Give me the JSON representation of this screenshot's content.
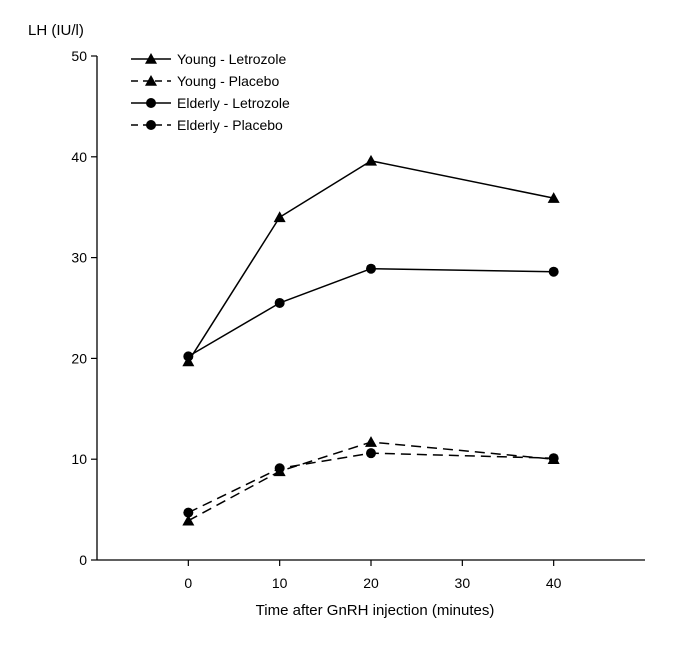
{
  "chart_data": {
    "type": "line",
    "title": "",
    "ylabel": "LH (IU/l)",
    "xlabel": "Time after GnRH injection (minutes)",
    "x_ticks": [
      0,
      10,
      20,
      30,
      40
    ],
    "y_ticks": [
      0,
      10,
      20,
      30,
      40,
      50
    ],
    "x_tick_labels": [
      "0",
      "10",
      "20",
      "30",
      "40"
    ],
    "y_tick_labels": [
      "0",
      "10",
      "20",
      "30",
      "40",
      "50"
    ],
    "xlim": [
      -10,
      50
    ],
    "ylim": [
      0,
      50
    ],
    "grid": false,
    "legend_position": "top-left",
    "series": [
      {
        "name": "Young - Letrozole",
        "line_style": "solid",
        "marker": "triangle",
        "x": [
          0,
          10,
          20,
          40
        ],
        "values": [
          19.7,
          34.0,
          39.6,
          35.9
        ]
      },
      {
        "name": "Young - Placebo",
        "line_style": "dashed",
        "marker": "triangle",
        "x": [
          0,
          10,
          20,
          40
        ],
        "values": [
          3.9,
          8.8,
          11.7,
          10.0
        ]
      },
      {
        "name": "Elderly - Letrozole",
        "line_style": "solid",
        "marker": "circle",
        "x": [
          0,
          10,
          20,
          40
        ],
        "values": [
          20.2,
          25.5,
          28.9,
          28.6
        ]
      },
      {
        "name": "Elderly - Placebo",
        "line_style": "dashed",
        "marker": "circle",
        "x": [
          0,
          10,
          20,
          40
        ],
        "values": [
          4.7,
          9.1,
          10.6,
          10.1
        ]
      }
    ],
    "colors": {
      "line": "#000000",
      "background": "#ffffff"
    }
  }
}
